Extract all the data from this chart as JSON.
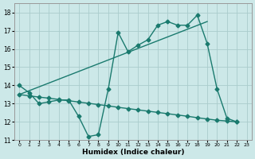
{
  "bg_color": "#cce8e8",
  "grid_color": "#aacccc",
  "line_color": "#1a7a6e",
  "xlabel": "Humidex (Indice chaleur)",
  "xlim": [
    -0.5,
    23.5
  ],
  "ylim": [
    11,
    18.5
  ],
  "yticks": [
    11,
    12,
    13,
    14,
    15,
    16,
    17,
    18
  ],
  "xticks": [
    0,
    1,
    2,
    3,
    4,
    5,
    6,
    7,
    8,
    9,
    10,
    11,
    12,
    13,
    14,
    15,
    16,
    17,
    18,
    19,
    20,
    21,
    22,
    23
  ],
  "line1_x": [
    0,
    1,
    2,
    3,
    4,
    5,
    6,
    7,
    8,
    9,
    10,
    11,
    12,
    13,
    14,
    15,
    16,
    17,
    18,
    19,
    20,
    21,
    22
  ],
  "line1_y": [
    14.0,
    13.6,
    13.0,
    13.1,
    13.2,
    13.2,
    12.3,
    11.2,
    11.3,
    13.8,
    16.9,
    15.85,
    16.2,
    16.5,
    17.3,
    17.5,
    17.3,
    17.3,
    17.85,
    16.3,
    13.8,
    12.2,
    12.0
  ],
  "line2_x": [
    0,
    1,
    2,
    3,
    4,
    5,
    6,
    7,
    8,
    9,
    10,
    11,
    12,
    13,
    14,
    15,
    16,
    17,
    18,
    19,
    20,
    21,
    22
  ],
  "line2_y": [
    13.5,
    13.43,
    13.36,
    13.3,
    13.23,
    13.16,
    13.09,
    13.02,
    12.95,
    12.88,
    12.8,
    12.73,
    12.66,
    12.59,
    12.52,
    12.45,
    12.38,
    12.31,
    12.23,
    12.16,
    12.09,
    12.05,
    12.0
  ],
  "line3_x": [
    0,
    19
  ],
  "line3_y": [
    13.5,
    17.5
  ]
}
